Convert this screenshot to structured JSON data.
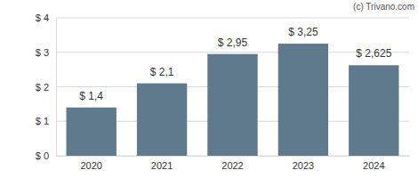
{
  "chart_data": {
    "type": "bar",
    "annotation": "(c) Trivano.com",
    "categories": [
      "2020",
      "2021",
      "2022",
      "2023",
      "2024"
    ],
    "values": [
      1.4,
      2.1,
      2.95,
      3.25,
      2.625
    ],
    "value_labels": [
      "$ 1,4",
      "$ 2,1",
      "$ 2,95",
      "$ 3,25",
      "$ 2,625"
    ],
    "color": "#5f7a8c",
    "ylim": [
      0,
      4
    ],
    "yticks": [
      {
        "value": 0,
        "label": "$ 0"
      },
      {
        "value": 1,
        "label": "$ 1"
      },
      {
        "value": 2,
        "label": "$ 2"
      },
      {
        "value": 3,
        "label": "$ 3"
      },
      {
        "value": 4,
        "label": "$ 4"
      }
    ],
    "grid": true,
    "data_labels": true
  }
}
